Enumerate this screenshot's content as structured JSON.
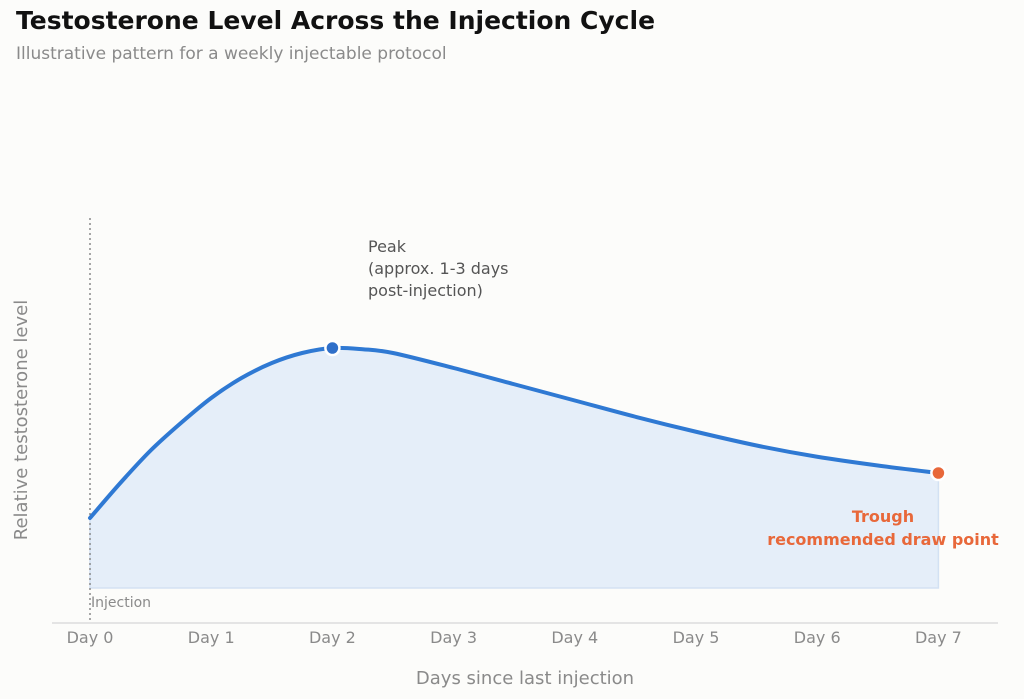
{
  "header": {
    "title": "Testosterone Level Across the Injection Cycle",
    "subtitle": "Illustrative pattern for a weekly injectable protocol"
  },
  "colors": {
    "line": "#2f79d3",
    "fill": "#e5eef9",
    "peak_marker": "#2f6fc9",
    "trough_marker": "#e8683a",
    "axis": "#d6d6d6",
    "injection_line": "#8a8a8a"
  },
  "chart_data": {
    "type": "area",
    "title": "Testosterone Level Across the Injection Cycle",
    "subtitle": "Illustrative pattern for a weekly injectable protocol",
    "xlabel": "Days since last injection",
    "ylabel": "Relative testosterone level",
    "categories": [
      "Day 0",
      "Day 1",
      "Day 2",
      "Day 3",
      "Day 4",
      "Day 5",
      "Day 6",
      "Day 7"
    ],
    "x": [
      0,
      0.25,
      0.5,
      0.75,
      1,
      1.25,
      1.5,
      1.75,
      2,
      2.25,
      2.5,
      3,
      3.5,
      4,
      4.5,
      5,
      5.5,
      6,
      6.5,
      7
    ],
    "values": [
      0.28,
      0.42,
      0.55,
      0.66,
      0.76,
      0.84,
      0.9,
      0.94,
      0.96,
      0.955,
      0.94,
      0.88,
      0.815,
      0.75,
      0.685,
      0.625,
      0.57,
      0.525,
      0.49,
      0.46
    ],
    "xlim": [
      -0.3,
      7.5
    ],
    "ylim": [
      0,
      1.3
    ],
    "grid": false,
    "annotations": {
      "peak": {
        "x": 2,
        "y": 0.96,
        "lines": [
          "Peak",
          "(approx. 1-3 days",
          "post-injection)"
        ]
      },
      "trough": {
        "x": 7,
        "y": 0.46,
        "lines": [
          "Trough",
          "recommended draw point"
        ]
      },
      "injection": {
        "x": 0,
        "label": "Injection"
      }
    }
  }
}
